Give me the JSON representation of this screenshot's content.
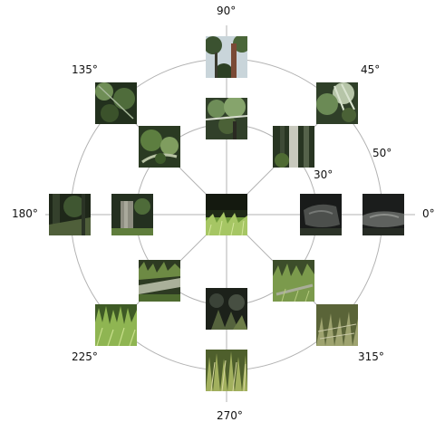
{
  "labels": {
    "deg90": "90°",
    "deg45": "45°",
    "deg135": "135°",
    "deg50": "50°",
    "deg30": "30°",
    "deg180": "180°",
    "deg0": "0°",
    "deg225": "225°",
    "deg315": "315°",
    "deg270": "270°"
  },
  "colors": {
    "grid_line": "#b3b3b3",
    "text": "#111111"
  },
  "thumbnails": [
    {
      "id": "center",
      "kind": "grass-floor"
    },
    {
      "id": "inner-0",
      "kind": "dark-rock"
    },
    {
      "id": "inner-45",
      "kind": "tree-trunk"
    },
    {
      "id": "inner-90",
      "kind": "canopy"
    },
    {
      "id": "inner-135",
      "kind": "foliage"
    },
    {
      "id": "inner-180",
      "kind": "stump"
    },
    {
      "id": "inner-225",
      "kind": "log-grass"
    },
    {
      "id": "inner-270",
      "kind": "dark-plants"
    },
    {
      "id": "inner-315",
      "kind": "grass-branch"
    },
    {
      "id": "outer-0",
      "kind": "dark-rock"
    },
    {
      "id": "outer-45",
      "kind": "foliage-bright"
    },
    {
      "id": "outer-90",
      "kind": "sky-trees"
    },
    {
      "id": "outer-135",
      "kind": "foliage"
    },
    {
      "id": "outer-180",
      "kind": "dark-forest"
    },
    {
      "id": "outer-225",
      "kind": "grass-bright"
    },
    {
      "id": "outer-270",
      "kind": "grass-tall"
    },
    {
      "id": "outer-315",
      "kind": "grass-dry"
    }
  ]
}
